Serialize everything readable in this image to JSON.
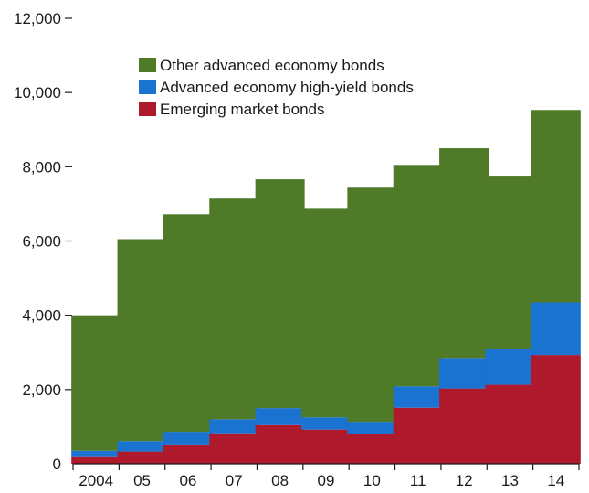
{
  "chart_data": {
    "type": "bar",
    "stacked": true,
    "title": "",
    "xlabel": "",
    "ylabel": "",
    "categories": [
      "2004",
      "05",
      "06",
      "07",
      "08",
      "09",
      "10",
      "11",
      "12",
      "13",
      "14"
    ],
    "series": [
      {
        "name": "Emerging market bonds",
        "color": "#ae1a2c",
        "values": [
          180,
          330,
          520,
          820,
          1040,
          920,
          800,
          1510,
          2030,
          2130,
          2930
        ]
      },
      {
        "name": "Advanced economy high-yield bonds",
        "color": "#1a73d0",
        "values": [
          170,
          280,
          340,
          380,
          460,
          330,
          330,
          580,
          820,
          950,
          1420
        ]
      },
      {
        "name": "Other advanced economy bonds",
        "color": "#4f7a28",
        "values": [
          3650,
          5440,
          5860,
          5940,
          6160,
          5640,
          6330,
          5960,
          5650,
          4680,
          5180
        ]
      }
    ],
    "legend_order": [
      2,
      1,
      0
    ],
    "legend_position": "top-left",
    "ylim": [
      0,
      12000
    ],
    "y_ticks": [
      "0",
      "2,000",
      "4,000",
      "6,000",
      "8,000",
      "10,000",
      "12,000"
    ],
    "y_tick_values": [
      0,
      2000,
      4000,
      6000,
      8000,
      10000,
      12000
    ],
    "grid": false
  }
}
